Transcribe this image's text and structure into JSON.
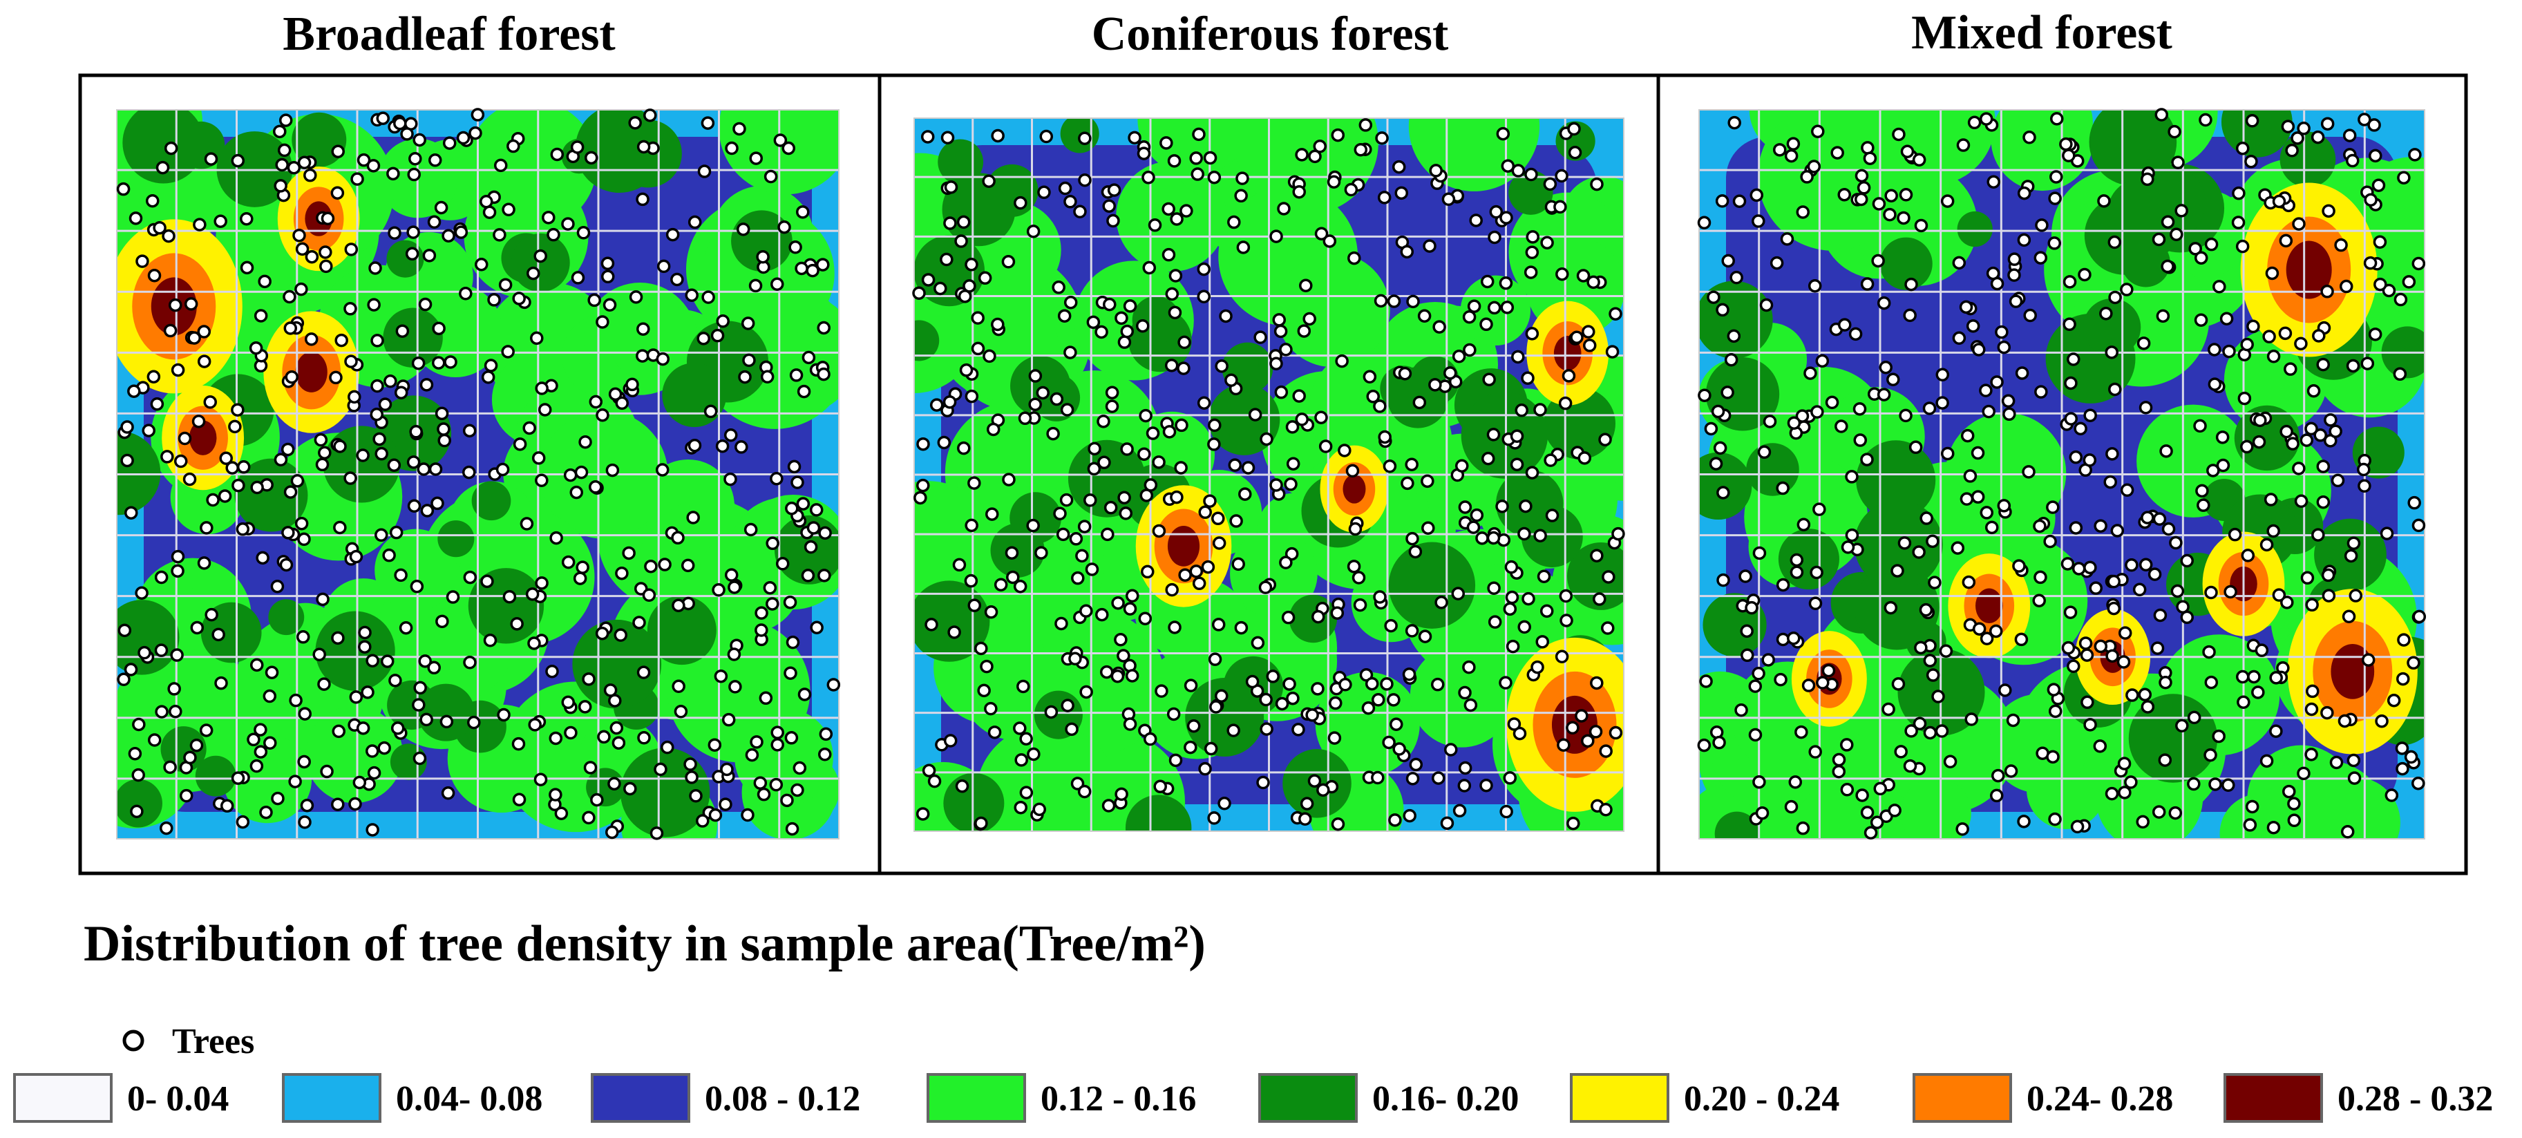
{
  "panels": [
    {
      "title": "Broadleaf forest"
    },
    {
      "title": "Coniferous forest"
    },
    {
      "title": "Mixed forest"
    }
  ],
  "legend": {
    "title": "Distribution of tree density in sample area(Tree/m²)",
    "trees_label": "Trees",
    "classes": [
      {
        "label": "0- 0.04",
        "color": "#f8f8fc"
      },
      {
        "label": "0.04- 0.08",
        "color": "#1ab0ec"
      },
      {
        "label": "0.08 - 0.12",
        "color": "#2e35b4"
      },
      {
        "label": "0.12 - 0.16",
        "color": "#22f02a"
      },
      {
        "label": "0.16- 0.20",
        "color": "#0a8c10"
      },
      {
        "label": "0.20 - 0.24",
        "color": "#fff200"
      },
      {
        "label": "0.24- 0.28",
        "color": "#ff7b00"
      },
      {
        "label": "0.28 - 0.32",
        "color": "#730000"
      }
    ]
  }
}
